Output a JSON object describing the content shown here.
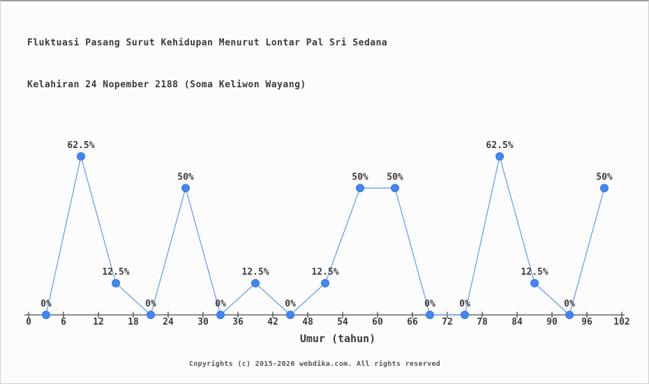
{
  "header": {
    "title_line1": "Fluktuasi Pasang Surut Kehidupan Menurut Lontar Pal Sri Sedana",
    "title_line2": "Kelahiran 24 Nopember 2188 (Soma Keliwon Wayang)"
  },
  "footer": {
    "copyright": "Copyrights (c) 2015-2026 webdika.com. All rights reserved"
  },
  "chart_data": {
    "type": "line",
    "title": "Fluktuasi Pasang Surut Kehidupan Menurut Lontar Pal Sri Sedana Kelahiran 24 Nopember 2188 (Soma Keliwon Wayang)",
    "x": [
      3,
      9,
      15,
      21,
      27,
      33,
      39,
      45,
      51,
      57,
      63,
      69,
      75,
      81,
      87,
      93,
      99
    ],
    "values": [
      0,
      62.5,
      12.5,
      0,
      50,
      0,
      12.5,
      0,
      12.5,
      50,
      50,
      0,
      0,
      62.5,
      12.5,
      0,
      50
    ],
    "point_labels": [
      "0%",
      "62.5%",
      "12.5%",
      "0%",
      "50%",
      "0%",
      "12.5%",
      "0%",
      "12.5%",
      "50%",
      "50%",
      "0%",
      "0%",
      "62.5%",
      "12.5%",
      "0%",
      "50%"
    ],
    "xlabel": "Umur (tahun)",
    "x_ticks": [
      0,
      6,
      12,
      18,
      24,
      30,
      36,
      42,
      48,
      54,
      60,
      66,
      72,
      78,
      84,
      90,
      96,
      102
    ],
    "xlim": [
      0,
      102
    ],
    "ylim": [
      0,
      70
    ],
    "grid": false,
    "legend": "none",
    "marker_shape": "circle",
    "colors": {
      "line": "#5e97f0",
      "marker": "#4285f4",
      "marker_edge": "#3575e8",
      "axis": "#4a4a4a",
      "text": "#3a3a3a",
      "background": "#fcfcfc"
    }
  }
}
